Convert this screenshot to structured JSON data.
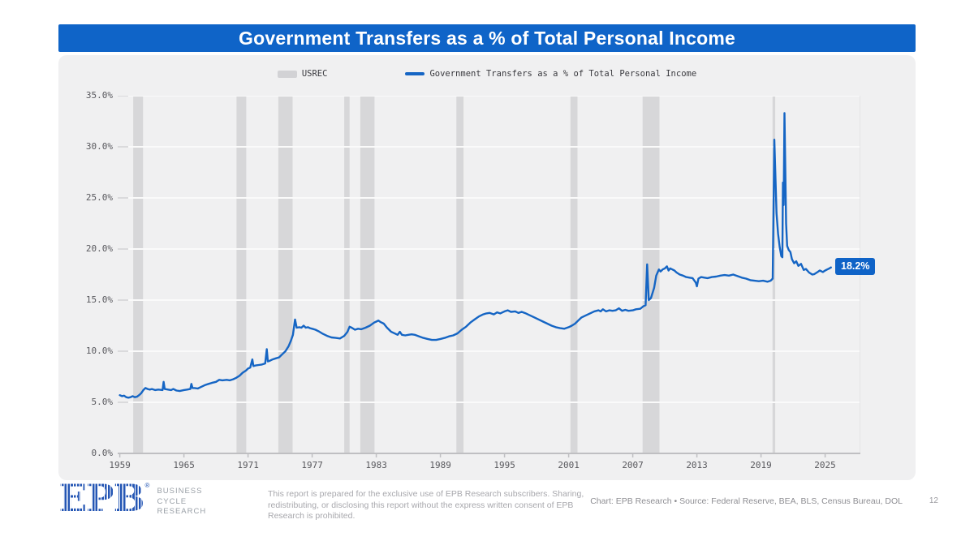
{
  "banner": {
    "title": "Government Transfers as a % of Total Personal Income"
  },
  "colors": {
    "accent": "#0f64c8",
    "line": "#1565c4",
    "recession": "#d7d7d9",
    "gridline": "#fafafa",
    "axis": "#bfbfc2",
    "tick_stub": "#cfcfd2",
    "right_border": "#dfdfe1",
    "card_bg": "#f0f0f1"
  },
  "chart_data": {
    "type": "line",
    "title": "Government Transfers as a % of Total Personal Income",
    "xlabel": "",
    "ylabel": "",
    "xlim": [
      1958.8,
      2028.3
    ],
    "ylim": [
      0,
      35
    ],
    "grid": "horizontal white gridlines on gray panel",
    "legend_position": "top center",
    "legend": [
      {
        "label": "USREC",
        "type": "patch"
      },
      {
        "label": "Government Transfers as a % of Total Personal Income",
        "type": "line"
      }
    ],
    "y_ticks": [
      {
        "v": 0,
        "label": "0.0%"
      },
      {
        "v": 5,
        "label": "5.0%"
      },
      {
        "v": 10,
        "label": "10.0%"
      },
      {
        "v": 15,
        "label": "15.0%"
      },
      {
        "v": 20,
        "label": "20.0%"
      },
      {
        "v": 25,
        "label": "25.0%"
      },
      {
        "v": 30,
        "label": "30.0%"
      },
      {
        "v": 35,
        "label": "35.0%"
      }
    ],
    "x_ticks": [
      {
        "v": 1959,
        "label": "1959"
      },
      {
        "v": 1965,
        "label": "1965"
      },
      {
        "v": 1971,
        "label": "1971"
      },
      {
        "v": 1977,
        "label": "1977"
      },
      {
        "v": 1983,
        "label": "1983"
      },
      {
        "v": 1989,
        "label": "1989"
      },
      {
        "v": 1995,
        "label": "1995"
      },
      {
        "v": 2001,
        "label": "2001"
      },
      {
        "v": 2007,
        "label": "2007"
      },
      {
        "v": 2013,
        "label": "2013"
      },
      {
        "v": 2019,
        "label": "2019"
      },
      {
        "v": 2025,
        "label": "2025"
      }
    ],
    "recessions": [
      [
        1960.25,
        1961.17
      ],
      [
        1969.92,
        1970.83
      ],
      [
        1973.83,
        1975.17
      ],
      [
        1980.0,
        1980.5
      ],
      [
        1981.5,
        1982.83
      ],
      [
        1990.5,
        1991.17
      ],
      [
        2001.17,
        2001.83
      ],
      [
        2007.92,
        2009.5
      ],
      [
        2020.08,
        2020.33
      ]
    ],
    "end_label": "18.2%",
    "series": [
      {
        "name": "Government Transfers as a % of Total Personal Income",
        "color": "#1565c4",
        "points": [
          [
            1959.0,
            5.7
          ],
          [
            1959.2,
            5.6
          ],
          [
            1959.4,
            5.65
          ],
          [
            1959.6,
            5.5
          ],
          [
            1959.8,
            5.45
          ],
          [
            1960.0,
            5.5
          ],
          [
            1960.2,
            5.6
          ],
          [
            1960.4,
            5.5
          ],
          [
            1960.6,
            5.55
          ],
          [
            1960.8,
            5.7
          ],
          [
            1961.0,
            5.9
          ],
          [
            1961.2,
            6.2
          ],
          [
            1961.4,
            6.4
          ],
          [
            1961.6,
            6.3
          ],
          [
            1961.8,
            6.25
          ],
          [
            1962.0,
            6.3
          ],
          [
            1962.3,
            6.2
          ],
          [
            1962.6,
            6.25
          ],
          [
            1963.0,
            6.2
          ],
          [
            1963.1,
            7.0
          ],
          [
            1963.2,
            6.3
          ],
          [
            1963.5,
            6.25
          ],
          [
            1963.8,
            6.2
          ],
          [
            1964.0,
            6.3
          ],
          [
            1964.3,
            6.15
          ],
          [
            1964.6,
            6.1
          ],
          [
            1965.0,
            6.2
          ],
          [
            1965.3,
            6.25
          ],
          [
            1965.6,
            6.3
          ],
          [
            1965.7,
            6.8
          ],
          [
            1965.8,
            6.4
          ],
          [
            1966.0,
            6.4
          ],
          [
            1966.3,
            6.35
          ],
          [
            1966.6,
            6.5
          ],
          [
            1967.0,
            6.7
          ],
          [
            1967.3,
            6.8
          ],
          [
            1967.6,
            6.9
          ],
          [
            1968.0,
            7.0
          ],
          [
            1968.3,
            7.2
          ],
          [
            1968.6,
            7.15
          ],
          [
            1969.0,
            7.2
          ],
          [
            1969.3,
            7.15
          ],
          [
            1969.6,
            7.25
          ],
          [
            1969.9,
            7.4
          ],
          [
            1970.2,
            7.6
          ],
          [
            1970.5,
            7.9
          ],
          [
            1970.8,
            8.1
          ],
          [
            1971.0,
            8.3
          ],
          [
            1971.2,
            8.4
          ],
          [
            1971.4,
            9.2
          ],
          [
            1971.5,
            8.55
          ],
          [
            1971.7,
            8.6
          ],
          [
            1972.0,
            8.65
          ],
          [
            1972.3,
            8.7
          ],
          [
            1972.6,
            8.8
          ],
          [
            1972.75,
            10.2
          ],
          [
            1972.85,
            9.0
          ],
          [
            1973.0,
            9.05
          ],
          [
            1973.3,
            9.2
          ],
          [
            1973.6,
            9.3
          ],
          [
            1973.9,
            9.4
          ],
          [
            1974.2,
            9.7
          ],
          [
            1974.5,
            10.0
          ],
          [
            1974.8,
            10.5
          ],
          [
            1975.0,
            11.0
          ],
          [
            1975.2,
            11.6
          ],
          [
            1975.4,
            13.1
          ],
          [
            1975.55,
            12.3
          ],
          [
            1975.8,
            12.35
          ],
          [
            1976.0,
            12.3
          ],
          [
            1976.2,
            12.5
          ],
          [
            1976.4,
            12.3
          ],
          [
            1976.6,
            12.35
          ],
          [
            1976.8,
            12.25
          ],
          [
            1977.0,
            12.2
          ],
          [
            1977.3,
            12.1
          ],
          [
            1977.6,
            11.95
          ],
          [
            1978.0,
            11.7
          ],
          [
            1978.4,
            11.5
          ],
          [
            1978.8,
            11.35
          ],
          [
            1979.2,
            11.3
          ],
          [
            1979.6,
            11.25
          ],
          [
            1980.0,
            11.5
          ],
          [
            1980.3,
            11.9
          ],
          [
            1980.5,
            12.4
          ],
          [
            1980.7,
            12.3
          ],
          [
            1981.0,
            12.1
          ],
          [
            1981.3,
            12.2
          ],
          [
            1981.6,
            12.15
          ],
          [
            1982.0,
            12.3
          ],
          [
            1982.4,
            12.5
          ],
          [
            1982.8,
            12.8
          ],
          [
            1983.0,
            12.9
          ],
          [
            1983.2,
            13.0
          ],
          [
            1983.4,
            12.85
          ],
          [
            1983.7,
            12.7
          ],
          [
            1984.0,
            12.3
          ],
          [
            1984.4,
            11.9
          ],
          [
            1984.8,
            11.7
          ],
          [
            1985.0,
            11.6
          ],
          [
            1985.2,
            11.9
          ],
          [
            1985.4,
            11.6
          ],
          [
            1985.7,
            11.55
          ],
          [
            1986.0,
            11.6
          ],
          [
            1986.3,
            11.65
          ],
          [
            1986.6,
            11.6
          ],
          [
            1987.0,
            11.45
          ],
          [
            1987.4,
            11.3
          ],
          [
            1987.8,
            11.2
          ],
          [
            1988.2,
            11.1
          ],
          [
            1988.6,
            11.1
          ],
          [
            1989.0,
            11.2
          ],
          [
            1989.4,
            11.3
          ],
          [
            1989.8,
            11.45
          ],
          [
            1990.2,
            11.55
          ],
          [
            1990.6,
            11.75
          ],
          [
            1991.0,
            12.1
          ],
          [
            1991.4,
            12.4
          ],
          [
            1991.8,
            12.8
          ],
          [
            1992.2,
            13.1
          ],
          [
            1992.6,
            13.4
          ],
          [
            1993.0,
            13.6
          ],
          [
            1993.3,
            13.7
          ],
          [
            1993.6,
            13.75
          ],
          [
            1994.0,
            13.6
          ],
          [
            1994.3,
            13.8
          ],
          [
            1994.6,
            13.7
          ],
          [
            1995.0,
            13.9
          ],
          [
            1995.3,
            14.0
          ],
          [
            1995.6,
            13.85
          ],
          [
            1996.0,
            13.9
          ],
          [
            1996.3,
            13.75
          ],
          [
            1996.6,
            13.85
          ],
          [
            1997.0,
            13.7
          ],
          [
            1997.4,
            13.5
          ],
          [
            1997.8,
            13.3
          ],
          [
            1998.2,
            13.1
          ],
          [
            1998.6,
            12.9
          ],
          [
            1999.0,
            12.7
          ],
          [
            1999.4,
            12.5
          ],
          [
            1999.8,
            12.35
          ],
          [
            2000.2,
            12.25
          ],
          [
            2000.6,
            12.2
          ],
          [
            2001.0,
            12.35
          ],
          [
            2001.3,
            12.5
          ],
          [
            2001.6,
            12.7
          ],
          [
            2001.9,
            13.0
          ],
          [
            2002.2,
            13.3
          ],
          [
            2002.6,
            13.5
          ],
          [
            2003.0,
            13.7
          ],
          [
            2003.4,
            13.9
          ],
          [
            2003.8,
            14.0
          ],
          [
            2004.0,
            13.9
          ],
          [
            2004.2,
            14.1
          ],
          [
            2004.5,
            13.9
          ],
          [
            2004.8,
            14.0
          ],
          [
            2005.1,
            13.95
          ],
          [
            2005.4,
            14.0
          ],
          [
            2005.7,
            14.2
          ],
          [
            2006.0,
            13.95
          ],
          [
            2006.3,
            14.05
          ],
          [
            2006.6,
            13.95
          ],
          [
            2007.0,
            14.0
          ],
          [
            2007.3,
            14.1
          ],
          [
            2007.7,
            14.15
          ],
          [
            2008.0,
            14.4
          ],
          [
            2008.2,
            14.5
          ],
          [
            2008.35,
            18.5
          ],
          [
            2008.5,
            15.0
          ],
          [
            2008.7,
            15.2
          ],
          [
            2009.0,
            16.2
          ],
          [
            2009.2,
            17.4
          ],
          [
            2009.45,
            18.0
          ],
          [
            2009.6,
            17.8
          ],
          [
            2009.8,
            18.0
          ],
          [
            2010.0,
            18.1
          ],
          [
            2010.2,
            18.3
          ],
          [
            2010.35,
            17.9
          ],
          [
            2010.5,
            18.1
          ],
          [
            2010.7,
            18.0
          ],
          [
            2010.9,
            17.9
          ],
          [
            2011.1,
            17.7
          ],
          [
            2011.4,
            17.5
          ],
          [
            2011.7,
            17.4
          ],
          [
            2012.0,
            17.25
          ],
          [
            2012.3,
            17.2
          ],
          [
            2012.6,
            17.15
          ],
          [
            2012.9,
            16.7
          ],
          [
            2013.0,
            16.35
          ],
          [
            2013.15,
            17.1
          ],
          [
            2013.4,
            17.25
          ],
          [
            2013.7,
            17.2
          ],
          [
            2014.0,
            17.15
          ],
          [
            2014.4,
            17.25
          ],
          [
            2014.8,
            17.3
          ],
          [
            2015.2,
            17.4
          ],
          [
            2015.6,
            17.45
          ],
          [
            2016.0,
            17.4
          ],
          [
            2016.4,
            17.5
          ],
          [
            2016.8,
            17.35
          ],
          [
            2017.2,
            17.2
          ],
          [
            2017.6,
            17.1
          ],
          [
            2018.0,
            16.95
          ],
          [
            2018.4,
            16.9
          ],
          [
            2018.8,
            16.85
          ],
          [
            2019.2,
            16.9
          ],
          [
            2019.6,
            16.8
          ],
          [
            2019.9,
            16.9
          ],
          [
            2020.1,
            17.1
          ],
          [
            2020.25,
            30.7
          ],
          [
            2020.45,
            23.5
          ],
          [
            2020.6,
            21.5
          ],
          [
            2020.75,
            20.2
          ],
          [
            2020.9,
            19.3
          ],
          [
            2021.0,
            19.2
          ],
          [
            2021.05,
            26.5
          ],
          [
            2021.12,
            24.3
          ],
          [
            2021.2,
            33.3
          ],
          [
            2021.35,
            22.5
          ],
          [
            2021.45,
            20.3
          ],
          [
            2021.6,
            19.9
          ],
          [
            2021.75,
            19.7
          ],
          [
            2021.9,
            19.0
          ],
          [
            2022.1,
            18.6
          ],
          [
            2022.3,
            18.8
          ],
          [
            2022.5,
            18.35
          ],
          [
            2022.75,
            18.55
          ],
          [
            2023.0,
            17.95
          ],
          [
            2023.2,
            18.05
          ],
          [
            2023.5,
            17.7
          ],
          [
            2023.8,
            17.5
          ],
          [
            2024.0,
            17.55
          ],
          [
            2024.3,
            17.75
          ],
          [
            2024.5,
            17.9
          ],
          [
            2024.8,
            17.75
          ],
          [
            2025.0,
            17.9
          ],
          [
            2025.2,
            18.0
          ],
          [
            2025.4,
            18.1
          ],
          [
            2025.55,
            18.2
          ]
        ]
      }
    ]
  },
  "footer": {
    "logo_text": "EPB",
    "logo_reg": "®",
    "logo_sub_1": "Business",
    "logo_sub_2": "Cycle",
    "logo_sub_3": "Research",
    "disclaimer": "This report is prepared for the exclusive use of EPB Research subscribers. Sharing, redistributing, or disclosing this report without the express written consent of EPB Research is prohibited.",
    "credit": "Chart: EPB Research  •  Source: Federal Reserve, BEA, BLS, Census Bureau, DOL",
    "page_number": "12"
  }
}
